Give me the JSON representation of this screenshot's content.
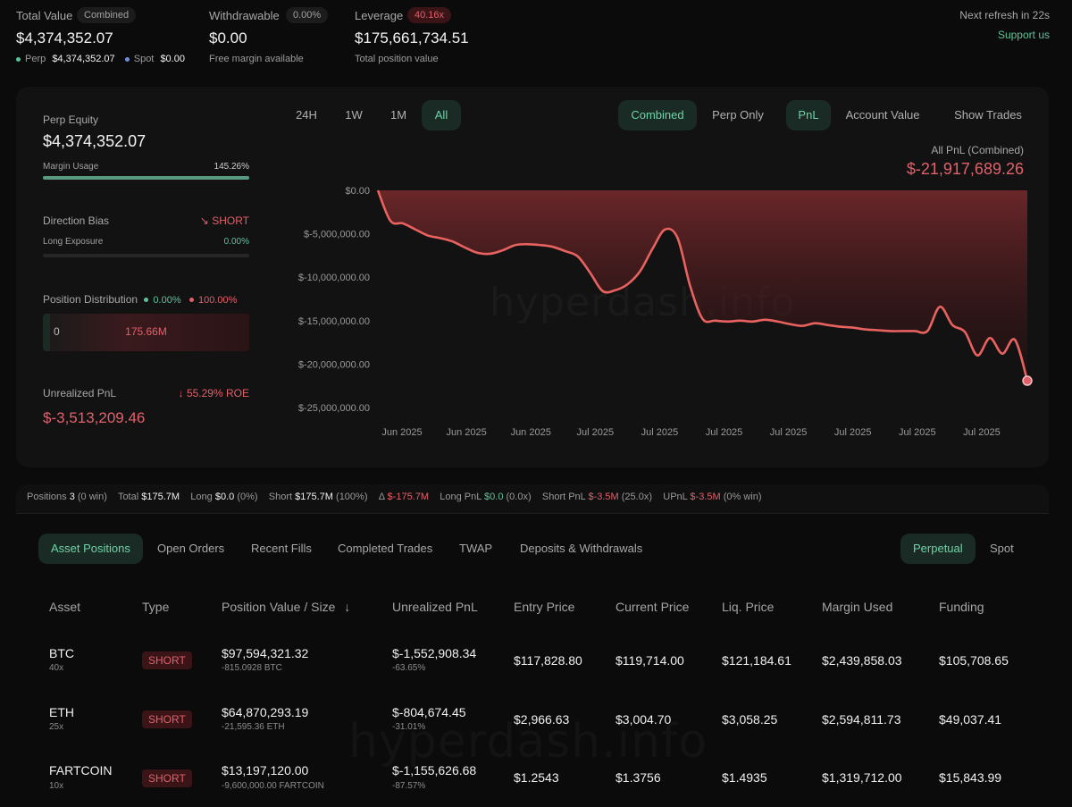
{
  "summary": {
    "total_value": {
      "label": "Total Value",
      "badge": "Combined",
      "value": "$4,374,352.07",
      "perp_label": "Perp",
      "perp_value": "$4,374,352.07",
      "spot_label": "Spot",
      "spot_value": "$0.00"
    },
    "withdrawable": {
      "label": "Withdrawable",
      "badge": "0.00%",
      "value": "$0.00",
      "sub": "Free margin available"
    },
    "leverage": {
      "label": "Leverage",
      "badge": "40.16x",
      "value": "$175,661,734.51",
      "sub": "Total position value"
    },
    "refresh": "Next refresh in 22s",
    "support": "Support us"
  },
  "left_panel": {
    "perp_equity_label": "Perp Equity",
    "perp_equity_value": "$4,374,352.07",
    "margin_usage_label": "Margin Usage",
    "margin_usage_value": "145.26%",
    "margin_usage_fraction": 1.0,
    "direction_bias_label": "Direction Bias",
    "direction_bias_value": "SHORT",
    "long_exposure_label": "Long Exposure",
    "long_exposure_value": "0.00%",
    "position_distribution_label": "Position Distribution",
    "dist_long_pct": "0.00%",
    "dist_short_pct": "100.00%",
    "dist_long_amount": "0",
    "dist_short_amount": "175.66M",
    "unrealized_pnl_label": "Unrealized PnL",
    "roe": "55.29% ROE",
    "unrealized_pnl_value": "$-3,513,209.46"
  },
  "chart_controls": {
    "ranges": [
      "24H",
      "1W",
      "1M",
      "All"
    ],
    "active_range": "All",
    "modes": [
      "Combined",
      "Perp Only"
    ],
    "active_mode": "Combined",
    "metrics": [
      "PnL",
      "Account Value"
    ],
    "active_metric": "PnL",
    "show_trades": "Show Trades"
  },
  "chart_header": {
    "label": "All PnL (Combined)",
    "value": "$-21,917,689.26"
  },
  "watermarks": {
    "chart": "hyperdash.info",
    "table": "hyperdash.info"
  },
  "chart_data": {
    "type": "area",
    "ylim": [
      -25000000,
      0
    ],
    "yticks": [
      "$0.00",
      "$-5,000,000.00",
      "$-10,000,000.00",
      "$-15,000,000.00",
      "$-20,000,000.00",
      "$-25,000,000.00"
    ],
    "xticks": [
      "Jun 2025",
      "Jun 2025",
      "Jun 2025",
      "Jul 2025",
      "Jul 2025",
      "Jul 2025",
      "Jul 2025",
      "Jul 2025",
      "Jul 2025",
      "Jul 2025"
    ],
    "series": [
      {
        "values": [
          0,
          -3500000,
          -3800000,
          -4500000,
          -5200000,
          -5500000,
          -5900000,
          -6600000,
          -7200000,
          -7300000,
          -6900000,
          -6300000,
          -6200000,
          -6300000,
          -6500000,
          -7000000,
          -7600000,
          -9500000,
          -11600000,
          -11500000,
          -10800000,
          -9300000,
          -6700000,
          -4500000,
          -5500000,
          -11000000,
          -14800000,
          -15000000,
          -15100000,
          -15000000,
          -15100000,
          -14900000,
          -15100000,
          -15400000,
          -15600000,
          -15300000,
          -15500000,
          -15700000,
          -15800000,
          -16000000,
          -16100000,
          -16200000,
          -16200000,
          -16200000,
          -16200000,
          -13400000,
          -15500000,
          -16300000,
          -19000000,
          -17000000,
          -18800000,
          -17200000,
          -21917689
        ]
      }
    ],
    "grid": false
  },
  "stats_strip": {
    "positions_label": "Positions",
    "positions_value": "3",
    "positions_sub": "(0 win)",
    "total_label": "Total",
    "total_value": "$175.7M",
    "long_label": "Long",
    "long_value": "$0.0",
    "long_sub": "(0%)",
    "short_label": "Short",
    "short_value": "$175.7M",
    "short_sub": "(100%)",
    "delta_label": "Δ",
    "delta_value": "$-175.7M",
    "long_pnl_label": "Long PnL",
    "long_pnl_value": "$0.0",
    "long_pnl_sub": "(0.0x)",
    "short_pnl_label": "Short PnL",
    "short_pnl_value": "$-3.5M",
    "short_pnl_sub": "(25.0x)",
    "upnl_label": "UPnL",
    "upnl_value": "$-3.5M",
    "upnl_sub": "(0% win)"
  },
  "tabs": [
    "Asset Positions",
    "Open Orders",
    "Recent Fills",
    "Completed Trades",
    "TWAP",
    "Deposits & Withdrawals"
  ],
  "market_tabs": [
    "Perpetual",
    "Spot"
  ],
  "table": {
    "columns": [
      "Asset",
      "Type",
      "Position Value / Size",
      "Unrealized PnL",
      "Entry Price",
      "Current Price",
      "Liq. Price",
      "Margin Used",
      "Funding"
    ],
    "sort_indicator": "↓",
    "rows": [
      {
        "asset": "BTC",
        "leverage": "40x",
        "type": "SHORT",
        "value": "$97,594,321.32",
        "size": "-815.0928 BTC",
        "upnl": "$-1,552,908.34",
        "upnl_pct": "-63.65%",
        "entry": "$117,828.80",
        "current": "$119,714.00",
        "liq": "$121,184.61",
        "margin": "$2,439,858.03",
        "funding": "$105,708.65"
      },
      {
        "asset": "ETH",
        "leverage": "25x",
        "type": "SHORT",
        "value": "$64,870,293.19",
        "size": "-21,595.36 ETH",
        "upnl": "$-804,674.45",
        "upnl_pct": "-31.01%",
        "entry": "$2,966.63",
        "current": "$3,004.70",
        "liq": "$3,058.25",
        "margin": "$2,594,811.73",
        "funding": "$49,037.41"
      },
      {
        "asset": "FARTCOIN",
        "leverage": "10x",
        "type": "SHORT",
        "value": "$13,197,120.00",
        "size": "-9,600,000.00 FARTCOIN",
        "upnl": "$-1,155,626.68",
        "upnl_pct": "-87.57%",
        "entry": "$1.2543",
        "current": "$1.3756",
        "liq": "$1.4935",
        "margin": "$1,319,712.00",
        "funding": "$15,843.99"
      }
    ]
  }
}
